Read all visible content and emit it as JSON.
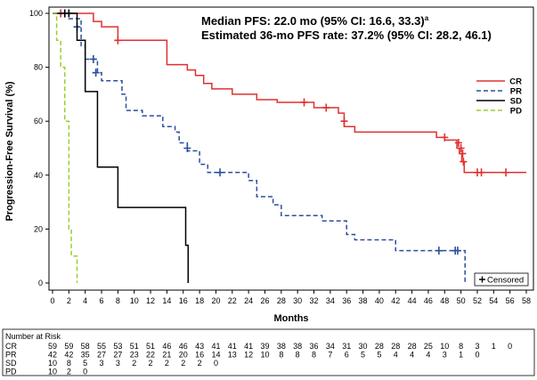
{
  "chart_data": {
    "type": "line",
    "subtype": "kaplan-meier",
    "xlabel": "Months",
    "ylabel": "Progression-Free Survival (%)",
    "xlim": [
      0,
      58
    ],
    "ylim": [
      0,
      100
    ],
    "xticks": [
      "0",
      "2",
      "4",
      "6",
      "8",
      "10",
      "12",
      "14",
      "16",
      "18",
      "20",
      "22",
      "24",
      "26",
      "28",
      "30",
      "32",
      "34",
      "36",
      "38",
      "40",
      "42",
      "44",
      "46",
      "48",
      "50",
      "52",
      "54",
      "56",
      "58"
    ],
    "yticks": [
      "0",
      "20",
      "40",
      "60",
      "80",
      "100"
    ],
    "annotations": {
      "line1": "Median PFS: 22.0 mo (95% CI: 16.6, 33.3)",
      "line1_sup": "a",
      "line2": "Estimated 36-mo PFS rate: 37.2% (95% CI: 28.2, 46.1)"
    },
    "censored_label": "Censored",
    "series": [
      {
        "name": "CR",
        "color": "#e03030",
        "dash": "solid",
        "steps": [
          [
            0,
            100
          ],
          [
            5,
            97
          ],
          [
            6,
            95
          ],
          [
            8,
            90
          ],
          [
            13.5,
            90
          ],
          [
            14,
            81
          ],
          [
            16,
            81
          ],
          [
            16.5,
            79
          ],
          [
            17.5,
            77
          ],
          [
            18.5,
            74
          ],
          [
            19.5,
            72
          ],
          [
            22,
            70
          ],
          [
            25,
            68
          ],
          [
            27.5,
            67
          ],
          [
            32,
            65
          ],
          [
            35,
            63
          ],
          [
            35.7,
            58
          ],
          [
            37,
            56
          ],
          [
            47,
            54
          ],
          [
            48,
            53
          ],
          [
            49.5,
            50
          ],
          [
            49.8,
            48
          ],
          [
            50.1,
            45
          ],
          [
            50.4,
            41
          ],
          [
            58,
            41
          ]
        ],
        "censored": [
          [
            1,
            100
          ],
          [
            8,
            90
          ],
          [
            30.8,
            67
          ],
          [
            33.5,
            65
          ],
          [
            35.7,
            60
          ],
          [
            48,
            54
          ],
          [
            49.7,
            52
          ],
          [
            50,
            50
          ],
          [
            50.2,
            48
          ],
          [
            50.3,
            45
          ],
          [
            52,
            41
          ],
          [
            52.5,
            41
          ],
          [
            55.5,
            41
          ]
        ]
      },
      {
        "name": "PR",
        "color": "#2b4f9e",
        "dash": "dashed",
        "steps": [
          [
            0,
            100
          ],
          [
            2,
            98
          ],
          [
            3.5,
            88
          ],
          [
            4,
            83
          ],
          [
            5.5,
            78
          ],
          [
            6,
            75
          ],
          [
            8.5,
            70
          ],
          [
            9,
            64
          ],
          [
            11,
            62
          ],
          [
            13.5,
            58
          ],
          [
            15,
            56
          ],
          [
            15.5,
            52
          ],
          [
            16.5,
            49
          ],
          [
            18,
            44
          ],
          [
            19,
            41
          ],
          [
            24,
            38
          ],
          [
            25,
            32
          ],
          [
            27,
            29
          ],
          [
            28,
            25
          ],
          [
            33,
            23
          ],
          [
            36,
            18
          ],
          [
            37,
            16
          ],
          [
            42,
            12
          ],
          [
            50,
            12
          ],
          [
            50.5,
            0
          ]
        ],
        "censored": [
          [
            3,
            95
          ],
          [
            5,
            83
          ],
          [
            5.3,
            78
          ],
          [
            16.5,
            50
          ],
          [
            20.5,
            41
          ],
          [
            47.3,
            12
          ],
          [
            49.3,
            12
          ],
          [
            49.6,
            12
          ]
        ]
      },
      {
        "name": "SD",
        "color": "#000000",
        "dash": "solid",
        "steps": [
          [
            0,
            100
          ],
          [
            3,
            90
          ],
          [
            4,
            71
          ],
          [
            5.5,
            43
          ],
          [
            8,
            28
          ],
          [
            16.3,
            14
          ],
          [
            16.6,
            0
          ]
        ],
        "censored": [
          [
            1.5,
            100
          ],
          [
            2,
            100
          ]
        ]
      },
      {
        "name": "PD",
        "color": "#9acd32",
        "dash": "dashed",
        "steps": [
          [
            0,
            100
          ],
          [
            0.5,
            90
          ],
          [
            1,
            80
          ],
          [
            1.5,
            60
          ],
          [
            2,
            20
          ],
          [
            2.3,
            10
          ],
          [
            3,
            0
          ]
        ],
        "censored": []
      }
    ],
    "risk_table": {
      "title": "Number at Risk",
      "times": [
        0,
        2,
        4,
        6,
        8,
        10,
        12,
        14,
        16,
        18,
        20,
        22,
        24,
        26,
        28,
        30,
        32,
        34,
        36,
        38,
        40,
        42,
        44,
        46,
        48,
        50,
        52,
        54,
        56,
        58
      ],
      "rows": [
        {
          "label": "CR",
          "values": [
            "59",
            "59",
            "58",
            "55",
            "53",
            "51",
            "51",
            "46",
            "46",
            "43",
            "41",
            "41",
            "41",
            "39",
            "38",
            "38",
            "36",
            "34",
            "31",
            "30",
            "28",
            "28",
            "28",
            "25",
            "10",
            "8",
            "3",
            "1",
            "0"
          ]
        },
        {
          "label": "PR",
          "values": [
            "42",
            "42",
            "35",
            "27",
            "27",
            "23",
            "22",
            "21",
            "20",
            "16",
            "14",
            "13",
            "12",
            "10",
            "8",
            "8",
            "8",
            "7",
            "6",
            "5",
            "5",
            "4",
            "4",
            "4",
            "3",
            "1",
            "0"
          ]
        },
        {
          "label": "SD",
          "values": [
            "10",
            "8",
            "5",
            "3",
            "3",
            "2",
            "2",
            "2",
            "2",
            "2",
            "0"
          ]
        },
        {
          "label": "PD",
          "values": [
            "10",
            "2",
            "0"
          ]
        }
      ]
    }
  }
}
